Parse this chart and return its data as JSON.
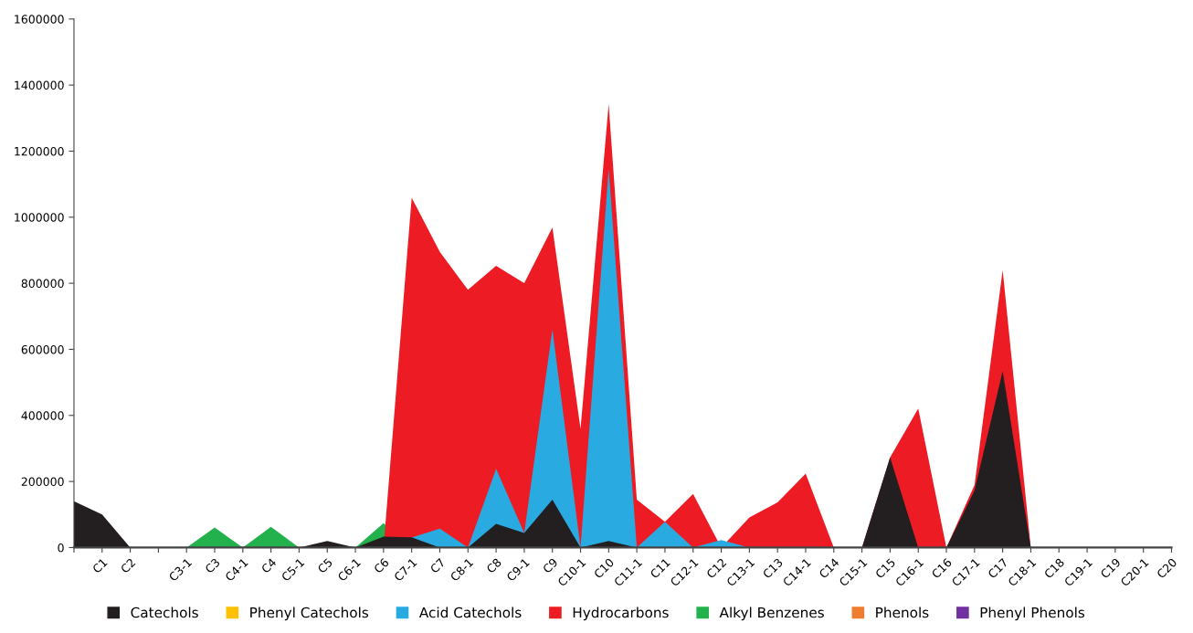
{
  "chart_data": {
    "type": "area",
    "stacked": false,
    "categories": [
      null,
      "C1",
      "C2",
      null,
      "C3-1",
      "C3",
      "C4-1",
      "C4",
      "C5-1",
      "C5",
      "C6-1",
      "C6",
      "C7-1",
      "C7",
      "C8-1",
      "C8",
      "C9-1",
      "C9",
      "C10-1",
      "C10",
      "C11-1",
      "C11",
      "C12-1",
      "C12",
      "C13-1",
      "C13",
      "C14-1",
      "C14",
      "C15-1",
      "C15",
      "C16-1",
      "C16",
      "C17-1",
      "C17",
      "C18-1",
      "C18",
      "C19-1",
      "C19",
      "C20-1",
      "C20"
    ],
    "series": [
      {
        "name": "Catechols",
        "color": "#231f20",
        "values": [
          140000,
          100000,
          0,
          0,
          0,
          0,
          0,
          0,
          0,
          20000,
          0,
          33000,
          31000,
          0,
          0,
          72000,
          44000,
          145000,
          0,
          20000,
          0,
          0,
          0,
          0,
          0,
          0,
          0,
          0,
          0,
          273000,
          0,
          0,
          173000,
          534000,
          0,
          0,
          0,
          0,
          0,
          0
        ]
      },
      {
        "name": "Phenyl Catechols",
        "color": "#ffc000",
        "values": [
          null,
          null,
          null,
          null,
          null,
          null,
          null,
          null,
          null,
          null,
          null,
          null,
          null,
          null,
          null,
          null,
          null,
          null,
          null,
          null,
          null,
          null,
          null,
          null,
          null,
          null,
          null,
          null,
          null,
          null,
          null,
          null,
          null,
          null,
          null,
          null,
          null,
          null,
          null,
          null
        ]
      },
      {
        "name": "Acid Catechols",
        "color": "#29abe2",
        "values": [
          0,
          0,
          0,
          0,
          0,
          0,
          0,
          0,
          0,
          0,
          0,
          0,
          30000,
          57000,
          0,
          238000,
          44000,
          660000,
          0,
          1146000,
          0,
          78000,
          0,
          23000,
          0,
          0,
          0,
          0,
          0,
          0,
          0,
          0,
          0,
          0,
          0,
          0,
          0,
          0,
          0,
          0
        ]
      },
      {
        "name": "Hydrocarbons",
        "color": "#ed1c24",
        "values": [
          0,
          0,
          0,
          0,
          0,
          0,
          0,
          0,
          0,
          0,
          0,
          0,
          1059000,
          895000,
          780000,
          853000,
          800000,
          969000,
          359000,
          1343000,
          145000,
          78000,
          162000,
          0,
          91000,
          137000,
          224000,
          0,
          0,
          273000,
          421000,
          0,
          189000,
          840000,
          0,
          0,
          0,
          0,
          0,
          0
        ]
      },
      {
        "name": "Alkyl Benzenes",
        "color": "#22b14c",
        "values": [
          0,
          0,
          0,
          0,
          0,
          61000,
          0,
          63000,
          0,
          0,
          0,
          74000,
          0,
          0,
          0,
          0,
          0,
          0,
          0,
          0,
          0,
          0,
          0,
          0,
          0,
          0,
          0,
          0,
          0,
          0,
          0,
          0,
          0,
          0,
          0,
          0,
          0,
          0,
          0,
          0
        ]
      },
      {
        "name": "Phenols",
        "color": "#ed7d31",
        "values": [
          null,
          null,
          null,
          null,
          null,
          null,
          null,
          null,
          null,
          null,
          null,
          null,
          null,
          null,
          null,
          null,
          null,
          null,
          null,
          null,
          null,
          null,
          null,
          null,
          null,
          null,
          null,
          null,
          null,
          null,
          null,
          null,
          null,
          null,
          null,
          null,
          null,
          null,
          null,
          null
        ]
      },
      {
        "name": "Phenyl Phenols",
        "color": "#7030a0",
        "values": [
          null,
          null,
          null,
          null,
          null,
          null,
          null,
          null,
          null,
          null,
          null,
          null,
          null,
          null,
          null,
          null,
          null,
          null,
          null,
          null,
          null,
          null,
          null,
          null,
          null,
          null,
          null,
          null,
          null,
          null,
          null,
          null,
          null,
          null,
          null,
          null,
          null,
          null,
          null,
          null
        ]
      }
    ],
    "ylim": [
      0,
      1600000
    ],
    "yticks": [
      0,
      200000,
      400000,
      600000,
      800000,
      1000000,
      1200000,
      1400000,
      1600000
    ],
    "grid": false,
    "legend": "bottom"
  }
}
